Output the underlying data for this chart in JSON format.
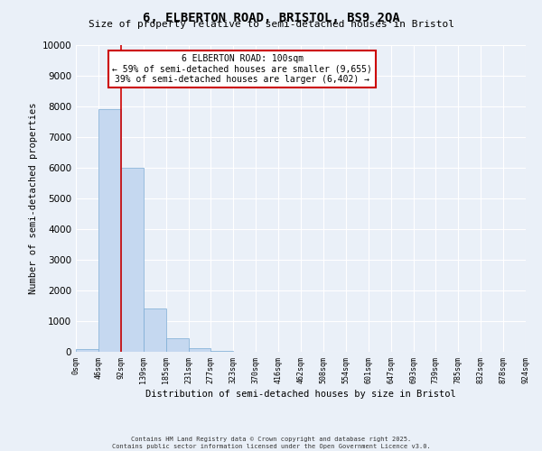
{
  "title": "6, ELBERTON ROAD, BRISTOL, BS9 2QA",
  "subtitle": "Size of property relative to semi-detached houses in Bristol",
  "xlabel": "Distribution of semi-detached houses by size in Bristol",
  "ylabel": "Number of semi-detached properties",
  "bar_values": [
    100,
    7900,
    6000,
    1400,
    450,
    120,
    30,
    8,
    2,
    1,
    0,
    0,
    0,
    0,
    0,
    0,
    0,
    0,
    0,
    0
  ],
  "bin_labels": [
    "0sqm",
    "46sqm",
    "92sqm",
    "139sqm",
    "185sqm",
    "231sqm",
    "277sqm",
    "323sqm",
    "370sqm",
    "416sqm",
    "462sqm",
    "508sqm",
    "554sqm",
    "601sqm",
    "647sqm",
    "693sqm",
    "739sqm",
    "785sqm",
    "832sqm",
    "878sqm",
    "924sqm"
  ],
  "bar_color": "#c5d8f0",
  "bar_edge_color": "#7aabd4",
  "annotation_text": "6 ELBERTON ROAD: 100sqm\n← 59% of semi-detached houses are smaller (9,655)\n39% of semi-detached houses are larger (6,402) →",
  "annotation_box_color": "#ffffff",
  "annotation_box_edge": "#cc0000",
  "property_line_color": "#cc0000",
  "ylim": [
    0,
    10000
  ],
  "yticks": [
    0,
    1000,
    2000,
    3000,
    4000,
    5000,
    6000,
    7000,
    8000,
    9000,
    10000
  ],
  "background_color": "#eaf0f8",
  "grid_color": "#ffffff",
  "footer_line1": "Contains HM Land Registry data © Crown copyright and database right 2025.",
  "footer_line2": "Contains public sector information licensed under the Open Government Licence v3.0."
}
